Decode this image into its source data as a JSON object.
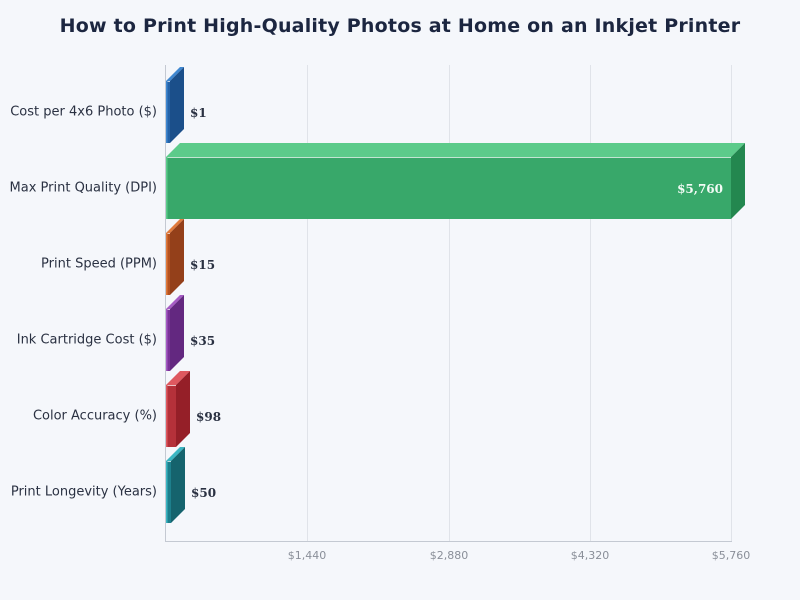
{
  "title": "How to Print High-Quality Photos at Home on an Inkjet Printer",
  "x_axis": {
    "ticks": [
      {
        "value": 1440,
        "label": "$1,440"
      },
      {
        "value": 2880,
        "label": "$2,880"
      },
      {
        "value": 4320,
        "label": "$4,320"
      },
      {
        "value": 5760,
        "label": "$5,760"
      }
    ]
  },
  "bars": [
    {
      "label": "Cost per 4x6 Photo ($)",
      "value": 1,
      "value_label": "$1",
      "color": "#2563a8",
      "top": "#3f87d0",
      "side": "#1b4f8a"
    },
    {
      "label": "Max Print Quality (DPI)",
      "value": 5760,
      "value_label": "$5,760",
      "color": "#38a86a",
      "top": "#5ccb8a",
      "side": "#23874f"
    },
    {
      "label": "Print Speed (PPM)",
      "value": 15,
      "value_label": "$15",
      "color": "#b5521f",
      "top": "#e07a3c",
      "side": "#94401a"
    },
    {
      "label": "Ink Cartridge Cost ($)",
      "value": 35,
      "value_label": "$35",
      "color": "#7b3399",
      "top": "#a55bc4",
      "side": "#632880"
    },
    {
      "label": "Color Accuracy (%)",
      "value": 98,
      "value_label": "$98",
      "color": "#b5313a",
      "top": "#de5960",
      "side": "#951f28"
    },
    {
      "label": "Print Longevity (Years)",
      "value": 50,
      "value_label": "$50",
      "color": "#1d7f8c",
      "top": "#3bb5c2",
      "side": "#15636d"
    }
  ],
  "chart_data": {
    "type": "bar",
    "orientation": "horizontal",
    "title": "How to Print High-Quality Photos at Home on an Inkjet Printer",
    "categories": [
      "Cost per 4x6 Photo ($)",
      "Max Print Quality (DPI)",
      "Print Speed (PPM)",
      "Ink Cartridge Cost ($)",
      "Color Accuracy (%)",
      "Print Longevity (Years)"
    ],
    "values": [
      1,
      5760,
      15,
      35,
      98,
      50
    ],
    "data_labels": [
      "$1",
      "$5,760",
      "$15",
      "$35",
      "$98",
      "$50"
    ],
    "xlabel": "",
    "ylabel": "",
    "xlim": [
      0,
      5760
    ],
    "x_ticks": [
      "$1,440",
      "$2,880",
      "$4,320",
      "$5,760"
    ],
    "grid": true,
    "legend": "none",
    "style": "3d"
  }
}
